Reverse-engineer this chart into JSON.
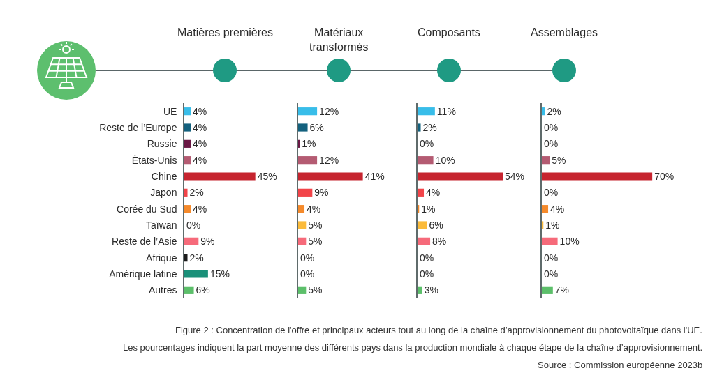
{
  "chart_data": [
    {
      "type": "bar",
      "orientation": "horizontal",
      "title": "Matières premières",
      "tick_labels": "y",
      "categories": [
        "UE",
        "Reste de l’Europe",
        "Russie",
        "États-Unis",
        "Chine",
        "Japon",
        "Corée du Sud",
        "Taïwan",
        "Reste de l’Asie",
        "Afrique",
        "Amérique latine",
        "Autres"
      ],
      "values": [
        4,
        4,
        4,
        4,
        45,
        2,
        4,
        0,
        9,
        2,
        15,
        6
      ],
      "value_labels": [
        "4%",
        "4%",
        "4%",
        "4%",
        "45%",
        "2%",
        "4%",
        "0%",
        "9%",
        "2%",
        "15%",
        "6%"
      ],
      "colors": [
        "#38bde9",
        "#13617e",
        "#6a1845",
        "#b45b72",
        "#c6242f",
        "#f24449",
        "#f58a2b",
        "#fbbb3b",
        "#f66a7a",
        "#1b1b1b",
        "#1a9079",
        "#5cbf6a"
      ],
      "annotations": [
        "Figure 2 : Concentration de l'offre et principaux acteurs tout au long de la chaîne d’approvisionnement du photovoltaïque dans l'UE.",
        "Les pourcentages indiquent la part moyenne des différents pays dans la production mondiale à chaque étape de la chaîne d’approvisionnement.",
        "Source : Commission européenne 2023b"
      ]
    },
    {
      "type": "bar",
      "orientation": "horizontal",
      "title": "Matériaux\ntransformés",
      "tick_labels": false,
      "categories": [
        "UE",
        "Reste de l’Europe",
        "Russie",
        "États-Unis",
        "Chine",
        "Japon",
        "Corée du Sud",
        "Taïwan",
        "Reste de l’Asie",
        "Afrique",
        "Amérique latine",
        "Autres"
      ],
      "values": [
        12,
        6,
        1,
        12,
        41,
        9,
        4,
        5,
        5,
        0,
        0,
        5
      ],
      "value_labels": [
        "12%",
        "6%",
        "1%",
        "12%",
        "41%",
        "9%",
        "4%",
        "5%",
        "5%",
        "0%",
        "0%",
        "5%"
      ],
      "colors": [
        "#38bde9",
        "#13617e",
        "#6a1845",
        "#b45b72",
        "#c6242f",
        "#f24449",
        "#f58a2b",
        "#fbbb3b",
        "#f66a7a",
        "#1b1b1b",
        "#1a9079",
        "#5cbf6a"
      ]
    },
    {
      "type": "bar",
      "orientation": "horizontal",
      "title": "Composants",
      "tick_labels": false,
      "categories": [
        "UE",
        "Reste de l’Europe",
        "Russie",
        "États-Unis",
        "Chine",
        "Japon",
        "Corée du Sud",
        "Taïwan",
        "Reste de l’Asie",
        "Afrique",
        "Amérique latine",
        "Autres"
      ],
      "values": [
        11,
        2,
        0,
        10,
        54,
        4,
        1,
        6,
        8,
        0,
        0,
        3
      ],
      "value_labels": [
        "11%",
        "2%",
        "0%",
        "10%",
        "54%",
        "4%",
        "1%",
        "6%",
        "8%",
        "0%",
        "0%",
        "3%"
      ],
      "colors": [
        "#38bde9",
        "#13617e",
        "#6a1845",
        "#b45b72",
        "#c6242f",
        "#f24449",
        "#f58a2b",
        "#fbbb3b",
        "#f66a7a",
        "#1b1b1b",
        "#1a9079",
        "#5cbf6a"
      ]
    },
    {
      "type": "bar",
      "orientation": "horizontal",
      "title": "Assemblages",
      "tick_labels": false,
      "categories": [
        "UE",
        "Reste de l’Europe",
        "Russie",
        "États-Unis",
        "Chine",
        "Japon",
        "Corée du Sud",
        "Taïwan",
        "Reste de l’Asie",
        "Afrique",
        "Amérique latine",
        "Autres"
      ],
      "values": [
        2,
        0,
        0,
        5,
        70,
        0,
        4,
        1,
        10,
        0,
        0,
        7
      ],
      "value_labels": [
        "2%",
        "0%",
        "0%",
        "5%",
        "70%",
        "0%",
        "4%",
        "1%",
        "10%",
        "0%",
        "0%",
        "7%"
      ],
      "colors": [
        "#38bde9",
        "#13617e",
        "#6a1845",
        "#b45b72",
        "#c6242f",
        "#f24449",
        "#f58a2b",
        "#fbbb3b",
        "#f66a7a",
        "#1b1b1b",
        "#1a9079",
        "#5cbf6a"
      ]
    }
  ]
}
